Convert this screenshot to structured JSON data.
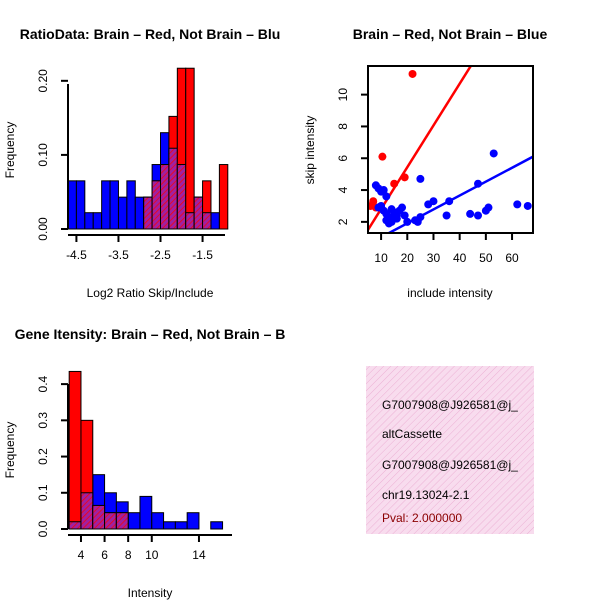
{
  "colors": {
    "brain": "#ff0000",
    "not_brain": "#0000ff",
    "overlap": "#a020a0",
    "pval": "#8b0000",
    "panel_fill": "#f8dcee",
    "panel_hatch": "#ecb0d4"
  },
  "chart_data": [
    {
      "type": "bar",
      "title": "RatioData: Brain – Red, Not Brain – Blu",
      "xlabel": "Log2 Ratio Skip/Include",
      "ylabel": "Frequency",
      "xlim": [
        -4.7,
        -0.8
      ],
      "ylim": [
        0,
        0.22
      ],
      "xticks": [
        "-4.5",
        "-3.5",
        "-2.5",
        "-1.5"
      ],
      "xtick_values": [
        -4.5,
        -3.5,
        -2.5,
        -1.5
      ],
      "yticks": [
        "0.00",
        "0.10",
        "0.20"
      ],
      "ytick_values": [
        0,
        0.1,
        0.2
      ],
      "bin_width": 0.2,
      "series": [
        {
          "name": "Not Brain",
          "color": "blue",
          "bins": [
            [
              -4.6,
              0.065
            ],
            [
              -4.4,
              0.065
            ],
            [
              -4.2,
              0.022
            ],
            [
              -4.0,
              0.022
            ],
            [
              -3.8,
              0.065
            ],
            [
              -3.6,
              0.065
            ],
            [
              -3.4,
              0.043
            ],
            [
              -3.2,
              0.065
            ],
            [
              -3.0,
              0.043
            ],
            [
              -2.8,
              0.043
            ],
            [
              -2.6,
              0.087
            ],
            [
              -2.4,
              0.13
            ],
            [
              -2.2,
              0.109
            ],
            [
              -2.0,
              0.087
            ],
            [
              -1.8,
              0.022
            ],
            [
              -1.6,
              0.043
            ],
            [
              -1.4,
              0.022
            ],
            [
              -1.2,
              0.022
            ]
          ]
        },
        {
          "name": "Brain",
          "color": "red",
          "bins": [
            [
              -2.8,
              0.043
            ],
            [
              -2.6,
              0.065
            ],
            [
              -2.4,
              0.087
            ],
            [
              -2.2,
              0.152
            ],
            [
              -2.0,
              0.217
            ],
            [
              -1.8,
              0.217
            ],
            [
              -1.6,
              0.043
            ],
            [
              -1.4,
              0.065
            ],
            [
              -1.0,
              0.087
            ]
          ]
        }
      ]
    },
    {
      "type": "scatter",
      "title": "Brain – Red, Not Brain – Blue",
      "xlabel": "include intensity",
      "ylabel": "skip intensity",
      "xlim": [
        5,
        68
      ],
      "ylim": [
        1.3,
        11.8
      ],
      "xticks": [
        "10",
        "20",
        "30",
        "40",
        "50",
        "60"
      ],
      "xtick_values": [
        10,
        20,
        30,
        40,
        50,
        60
      ],
      "yticks": [
        "2",
        "4",
        "6",
        "8",
        "10"
      ],
      "ytick_values": [
        2,
        4,
        6,
        8,
        10
      ],
      "series": [
        {
          "name": "Brain",
          "color": "red",
          "points": [
            [
              7,
              3.3
            ],
            [
              10.5,
              6.1
            ],
            [
              15,
              4.4
            ],
            [
              19,
              4.8
            ],
            [
              22,
              11.3
            ],
            [
              6,
              3.0
            ],
            [
              8,
              2.9
            ]
          ],
          "fit_line": [
            [
              5,
              1.5
            ],
            [
              45,
              12.0
            ]
          ]
        },
        {
          "name": "Not Brain",
          "color": "blue",
          "points": [
            [
              8,
              4.3
            ],
            [
              9,
              4.1
            ],
            [
              10,
              3.9
            ],
            [
              11,
              4.0
            ],
            [
              12,
              3.6
            ],
            [
              10,
              3.0
            ],
            [
              11,
              2.7
            ],
            [
              12,
              2.5
            ],
            [
              13,
              2.3
            ],
            [
              14,
              2.2
            ],
            [
              15,
              2.6
            ],
            [
              12,
              2.1
            ],
            [
              13,
              1.9
            ],
            [
              14,
              2.0
            ],
            [
              16,
              2.2
            ],
            [
              17,
              2.7
            ],
            [
              18,
              2.9
            ],
            [
              20,
              2.0
            ],
            [
              23,
              2.1
            ],
            [
              25,
              2.3
            ],
            [
              25,
              4.7
            ],
            [
              28,
              3.1
            ],
            [
              30,
              3.3
            ],
            [
              35,
              2.4
            ],
            [
              36,
              3.3
            ],
            [
              44,
              2.5
            ],
            [
              47,
              2.4
            ],
            [
              47,
              4.4
            ],
            [
              50,
              2.7
            ],
            [
              51,
              2.9
            ],
            [
              53,
              6.3
            ],
            [
              62,
              3.1
            ],
            [
              66,
              3.0
            ],
            [
              9,
              2.9
            ],
            [
              16,
              2.4
            ],
            [
              24,
              2.0
            ],
            [
              14,
              2.8
            ],
            [
              19,
              2.4
            ]
          ],
          "fit_line": [
            [
              5,
              0.6
            ],
            [
              68,
              6.1
            ]
          ]
        }
      ]
    },
    {
      "type": "bar",
      "title": "Gene Itensity: Brain – Red, Not Brain – B",
      "xlabel": "Intensity",
      "ylabel": "Frequency",
      "xlim": [
        2.9,
        16.8
      ],
      "ylim": [
        0,
        0.45
      ],
      "xticks": [
        "4",
        "6",
        "8",
        "10",
        "14"
      ],
      "xtick_values": [
        4,
        6,
        8,
        10,
        14
      ],
      "yticks": [
        "0.0",
        "0.1",
        "0.2",
        "0.3",
        "0.4"
      ],
      "ytick_values": [
        0,
        0.1,
        0.2,
        0.3,
        0.4
      ],
      "bin_width": 1,
      "series": [
        {
          "name": "Not Brain",
          "color": "blue",
          "bins": [
            [
              3.5,
              0.02
            ],
            [
              4.5,
              0.1
            ],
            [
              5.5,
              0.15
            ],
            [
              6.5,
              0.1
            ],
            [
              7.5,
              0.075
            ],
            [
              8.5,
              0.045
            ],
            [
              9.5,
              0.09
            ],
            [
              10.5,
              0.045
            ],
            [
              11.5,
              0.02
            ],
            [
              12.5,
              0.02
            ],
            [
              13.5,
              0.045
            ],
            [
              14.5,
              0.0
            ],
            [
              15.5,
              0.02
            ]
          ]
        },
        {
          "name": "Brain",
          "color": "red",
          "bins": [
            [
              3.5,
              0.435
            ],
            [
              4.5,
              0.3
            ],
            [
              5.5,
              0.065
            ],
            [
              6.5,
              0.045
            ],
            [
              7.5,
              0.045
            ]
          ]
        }
      ]
    }
  ],
  "info_panel": {
    "line1": "G7007908@J926581@j_",
    "line2": "altCassette",
    "line3": "G7007908@J926581@j_",
    "line4": "chr19.13024-2.1",
    "pval": "Pval: 2.000000"
  }
}
